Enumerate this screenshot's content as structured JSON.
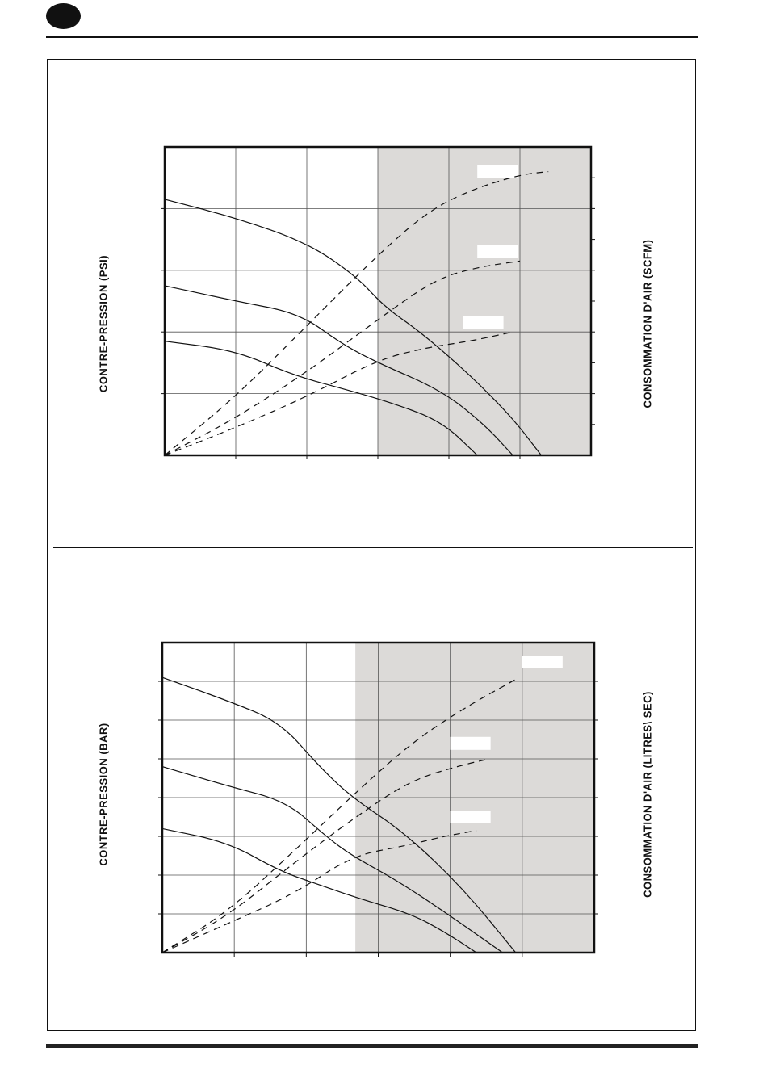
{
  "page": {
    "badge_color": "#111111",
    "shade_color": "#dcdad8"
  },
  "chart_data": [
    {
      "type": "line",
      "title": "",
      "ylabel_left": "CONTRE-PRESSION  (PSI)",
      "ylabel_right": "CONSOMMATION D'AIR (SCFM)",
      "xlim": [
        0,
        6
      ],
      "ylim": [
        0,
        5
      ],
      "grid": true,
      "shaded_region_x": [
        3,
        6
      ],
      "series": [
        {
          "style": "solid",
          "x": [
            0,
            1.0,
            2.0,
            2.7,
            3.1,
            3.6,
            4.3,
            4.9,
            5.3
          ],
          "y": [
            4.15,
            3.85,
            3.45,
            2.9,
            2.4,
            2.0,
            1.3,
            0.6,
            0
          ]
        },
        {
          "style": "solid",
          "x": [
            0,
            1.0,
            1.9,
            2.5,
            3.0,
            3.9,
            4.5,
            4.9
          ],
          "y": [
            2.75,
            2.5,
            2.3,
            1.8,
            1.5,
            1.05,
            0.5,
            0
          ]
        },
        {
          "style": "solid",
          "x": [
            0,
            1.0,
            1.8,
            2.6,
            3.2,
            3.9,
            4.4
          ],
          "y": [
            1.85,
            1.7,
            1.3,
            1.05,
            0.85,
            0.55,
            0
          ]
        },
        {
          "style": "dashed",
          "x": [
            0,
            1.0,
            2.0,
            3.0,
            3.7,
            4.3,
            5.0,
            5.4
          ],
          "y": [
            0,
            0.95,
            2.1,
            3.25,
            3.95,
            4.3,
            4.55,
            4.6
          ]
        },
        {
          "style": "dashed",
          "x": [
            0,
            1.0,
            2.0,
            3.0,
            3.8,
            4.4,
            5.0
          ],
          "y": [
            0,
            0.6,
            1.35,
            2.2,
            2.85,
            3.05,
            3.15
          ]
        },
        {
          "style": "dashed",
          "x": [
            0,
            1.0,
            2.0,
            3.0,
            3.7,
            4.3,
            4.9
          ],
          "y": [
            0,
            0.45,
            0.95,
            1.55,
            1.75,
            1.85,
            2.0
          ]
        }
      ],
      "legend_boxes": [
        [
          4.4,
          4.6
        ],
        [
          4.4,
          3.3
        ],
        [
          4.2,
          2.15
        ]
      ]
    },
    {
      "type": "line",
      "title": "",
      "ylabel_left": "CONTRE-PRESSION  (BAR)",
      "ylabel_right": "CONSOMMATION D'AIR (LITRES\\ SEC)",
      "xlim": [
        0,
        6.6
      ],
      "ylim": [
        0,
        8
      ],
      "grid": true,
      "shaded_region_x": [
        2.95,
        6.6
      ],
      "series": [
        {
          "style": "solid",
          "x": [
            0,
            1.0,
            1.8,
            2.4,
            2.9,
            3.7,
            4.6,
            5.4
          ],
          "y": [
            7.1,
            6.5,
            5.95,
            4.8,
            4.0,
            3.1,
            1.65,
            0
          ]
        },
        {
          "style": "solid",
          "x": [
            0,
            1.0,
            1.9,
            2.5,
            2.9,
            3.6,
            4.4,
            5.2
          ],
          "y": [
            4.8,
            4.3,
            3.9,
            3.0,
            2.5,
            1.85,
            0.95,
            0
          ]
        },
        {
          "style": "solid",
          "x": [
            0,
            1.0,
            1.8,
            2.4,
            3.0,
            3.8,
            4.3,
            4.8
          ],
          "y": [
            3.2,
            2.85,
            2.1,
            1.75,
            1.4,
            1.0,
            0.55,
            0
          ]
        },
        {
          "style": "dashed",
          "x": [
            0,
            1.0,
            2.0,
            3.0,
            3.8,
            4.6,
            5.4
          ],
          "y": [
            0,
            1.05,
            2.6,
            4.2,
            5.4,
            6.3,
            7.05
          ]
        },
        {
          "style": "dashed",
          "x": [
            0,
            1.0,
            2.0,
            2.95,
            3.8,
            4.6,
            5.0
          ],
          "y": [
            0,
            0.95,
            2.3,
            3.5,
            4.45,
            4.85,
            5.0
          ]
        },
        {
          "style": "dashed",
          "x": [
            0,
            1.0,
            2.0,
            2.9,
            3.7,
            4.3,
            4.8
          ],
          "y": [
            0,
            0.75,
            1.5,
            2.5,
            2.75,
            3.0,
            3.15
          ]
        }
      ],
      "legend_boxes": [
        [
          5.5,
          7.5
        ],
        [
          4.4,
          5.4
        ],
        [
          4.4,
          3.5
        ]
      ]
    }
  ]
}
